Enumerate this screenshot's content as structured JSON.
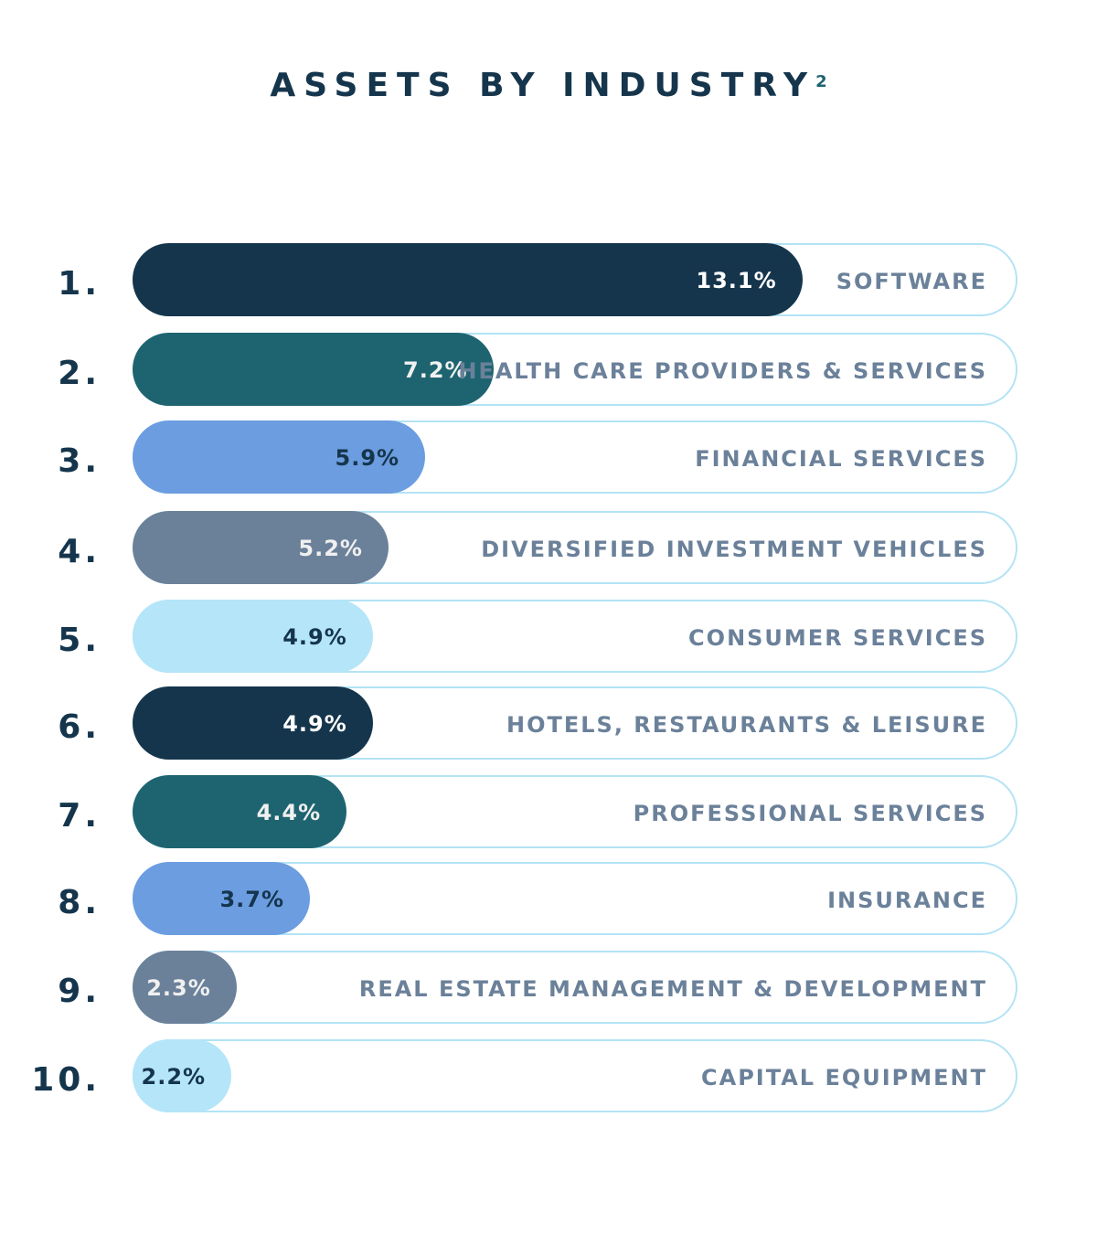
{
  "chart_data": {
    "type": "bar",
    "orientation": "horizontal",
    "title": "ASSETS BY INDUSTRY",
    "title_superscript": "2",
    "ranks": [
      "1.",
      "2.",
      "3.",
      "4.",
      "5.",
      "6.",
      "7.",
      "8.",
      "9.",
      "10."
    ],
    "categories": [
      "SOFTWARE",
      "HEALTH CARE PROVIDERS & SERVICES",
      "FINANCIAL SERVICES",
      "DIVERSIFIED INVESTMENT VEHICLES",
      "CONSUMER SERVICES",
      "HOTELS, RESTAURANTS & LEISURE",
      "PROFESSIONAL SERVICES",
      "INSURANCE",
      "REAL ESTATE MANAGEMENT & DEVELOPMENT",
      "CAPITAL EQUIPMENT"
    ],
    "values": [
      13.1,
      7.2,
      5.9,
      5.2,
      4.9,
      4.9,
      4.4,
      3.7,
      2.3,
      2.2
    ],
    "value_labels": [
      "13.1%",
      "7.2%",
      "5.9%",
      "5.2%",
      "4.9%",
      "4.9%",
      "4.4%",
      "3.7%",
      "2.3%",
      "2.2%"
    ],
    "bar_colors": [
      "#15354c",
      "#1e6470",
      "#6b9de0",
      "#6b819a",
      "#b5e5f8",
      "#15354c",
      "#1e6470",
      "#6b9de0",
      "#6b819a",
      "#b5e5f8"
    ],
    "value_text_colors": [
      "#ffffff",
      "#f0f0f0",
      "#15354c",
      "#f0f0f0",
      "#15354c",
      "#ffffff",
      "#f0f0f0",
      "#15354c",
      "#f0f0f0",
      "#15354c"
    ],
    "track_color": "#b3e3f5",
    "label_color": "#6b819a",
    "grid": false
  }
}
